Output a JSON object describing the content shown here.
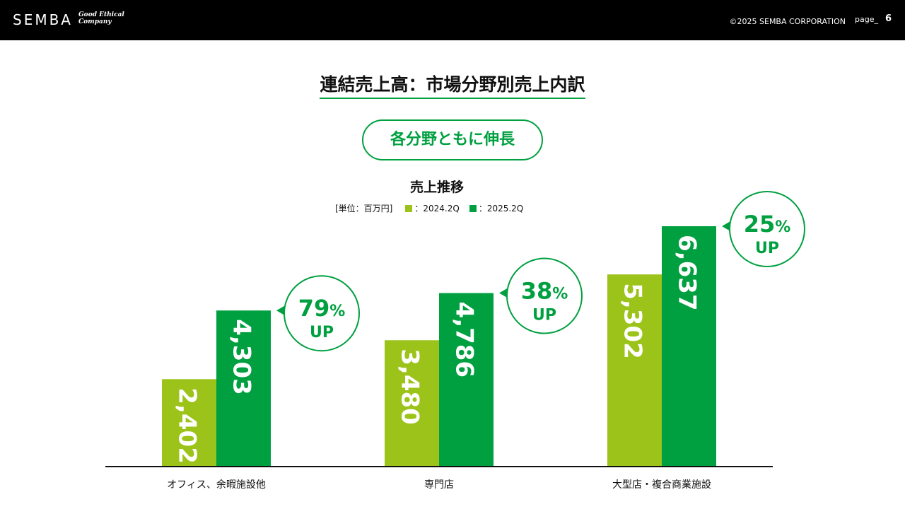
{
  "header": {
    "logo": "SEMBA",
    "tagline_line1": "Good Ethical",
    "tagline_line2": "Company",
    "copyright": "©2025 SEMBA CORPORATION",
    "page_label": "page_",
    "page_number": "6"
  },
  "slide": {
    "title": "連結売上高：市場分野別売上内訳",
    "highlight": "各分野ともに伸長",
    "subtitle": "売上推移",
    "unit_label": "[単位：百万円]"
  },
  "colors": {
    "series_2024": "#9cc31a",
    "series_2025": "#00a040",
    "accent": "#00a040"
  },
  "chart_data": {
    "type": "bar",
    "categories": [
      "オフィス、余暇施設他",
      "専門店",
      "大型店・複合商業施設"
    ],
    "series": [
      {
        "name": "2024.2Q",
        "legend": "：2024.2Q",
        "values": [
          2402,
          3480,
          5302
        ],
        "labels": [
          "2,402",
          "3,480",
          "5,302"
        ]
      },
      {
        "name": "2025.2Q",
        "legend": "：2025.2Q",
        "values": [
          4303,
          4786,
          6637
        ],
        "labels": [
          "4,303",
          "4,786",
          "6,637"
        ]
      }
    ],
    "growth": [
      {
        "pct": "79",
        "sign": "%",
        "up": "UP"
      },
      {
        "pct": "38",
        "sign": "%",
        "up": "UP"
      },
      {
        "pct": "25",
        "sign": "%",
        "up": "UP"
      }
    ],
    "ylim": [
      0,
      6637
    ],
    "grid": false
  }
}
